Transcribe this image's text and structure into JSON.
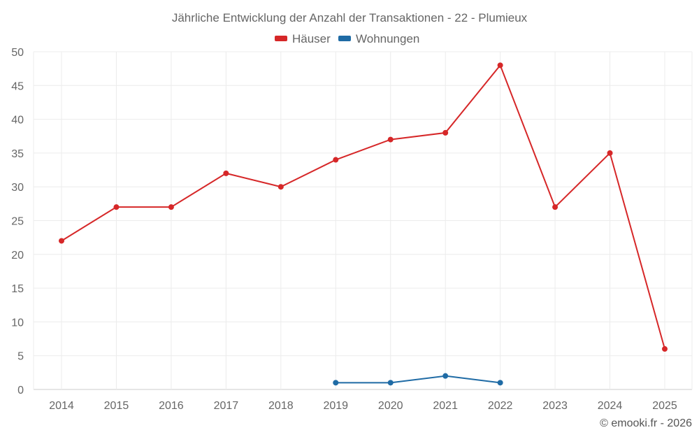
{
  "chart_data": {
    "type": "line",
    "title": "Jährliche Entwicklung der Anzahl der Transaktionen - 22 - Plumieux",
    "xlabel": "",
    "ylabel": "",
    "categories": [
      "2014",
      "2015",
      "2016",
      "2017",
      "2018",
      "2019",
      "2020",
      "2021",
      "2022",
      "2023",
      "2024",
      "2025"
    ],
    "ylim": [
      0,
      50
    ],
    "yticks": [
      0,
      5,
      10,
      15,
      20,
      25,
      30,
      35,
      40,
      45,
      50
    ],
    "grid": true,
    "legend_position": "top-center",
    "series": [
      {
        "name": "Häuser",
        "color": "#d62728",
        "values": [
          22,
          27,
          27,
          32,
          30,
          34,
          37,
          38,
          48,
          27,
          35,
          6
        ]
      },
      {
        "name": "Wohnungen",
        "color": "#1f6ba5",
        "values": [
          null,
          null,
          null,
          null,
          null,
          1,
          1,
          2,
          1,
          null,
          null,
          null
        ]
      }
    ]
  },
  "credit": "© emooki.fr - 2026"
}
